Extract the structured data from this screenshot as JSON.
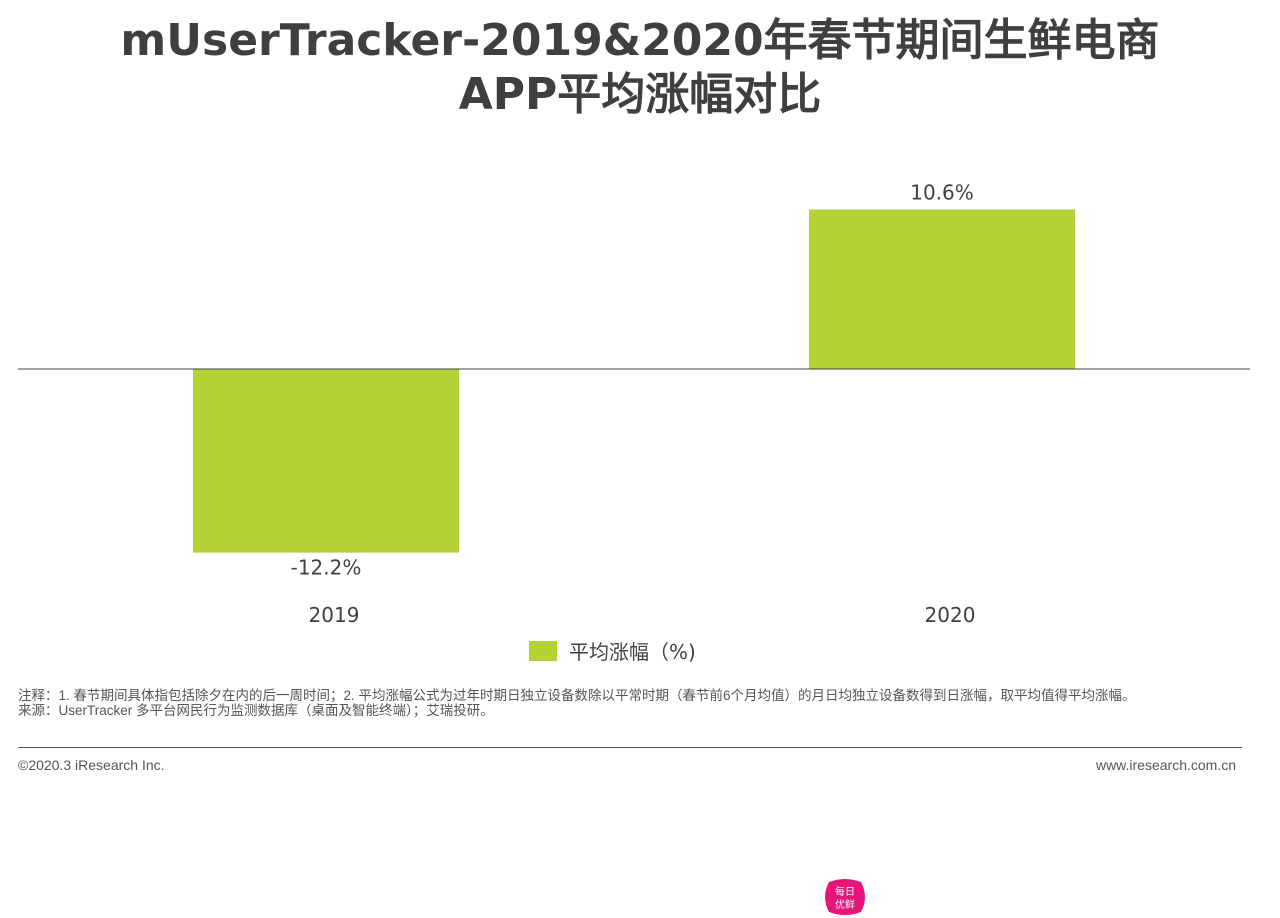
{
  "header": {
    "title_line1": "mUserTracker-2019&2020年春节期间生鲜电商",
    "title_line2": "APP平均涨幅对比"
  },
  "chart_data": {
    "type": "bar",
    "categories": [
      "2019",
      "2020"
    ],
    "series": [
      {
        "name": "平均涨幅（%)",
        "values": [
          -12.2,
          10.6
        ]
      }
    ],
    "data_labels": [
      "-12.2%",
      "10.6%"
    ],
    "ylim": [
      -12.2,
      10.6
    ],
    "grid": false,
    "legend": "bottom-center",
    "colors": {
      "bar": "#b2d235",
      "axis": "#404040"
    }
  },
  "notes": {
    "note": "注释：1. 春节期间具体指包括除夕在内的后一周时间；2. 平均涨幅公式为过年时期日独立设备数除以平常时期（春节前6个月均值）的月日均独立设备数得到日涨幅，取平均值得平均涨幅。",
    "source": "来源：UserTracker 多平台网民行为监测数据库（桌面及智能终端）；艾瑞投研。"
  },
  "footer": {
    "copyright": "©2020.3 iResearch Inc.",
    "website": "www.iresearch.com.cn"
  },
  "logo": {
    "text_line1": "每日",
    "text_line2": "优鲜",
    "color": "#e6157a"
  }
}
